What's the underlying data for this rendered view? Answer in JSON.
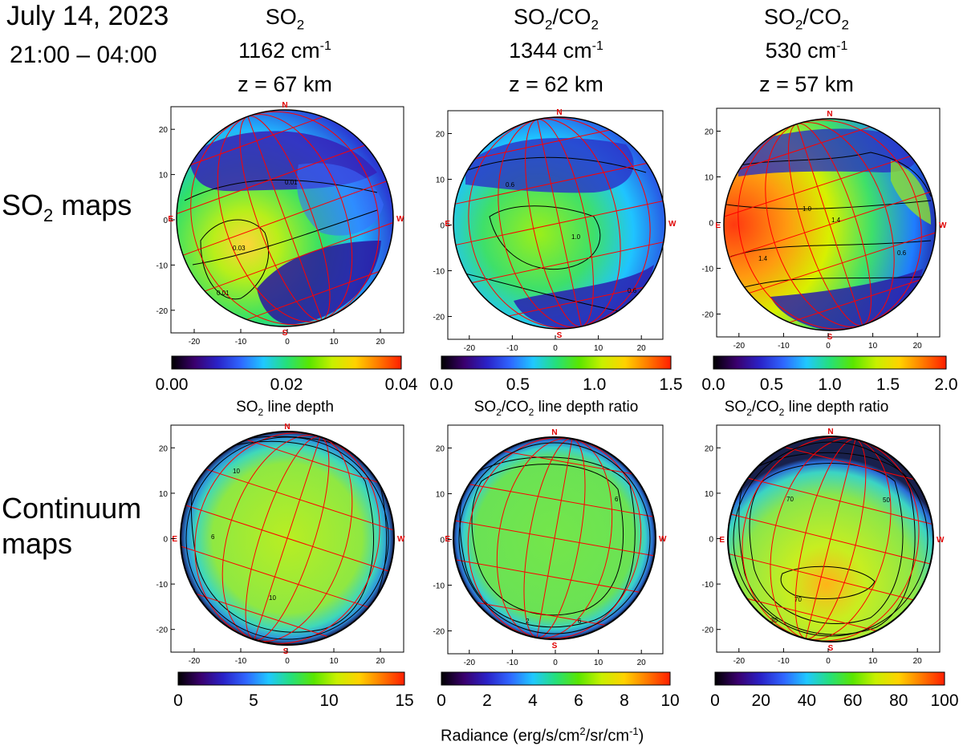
{
  "header": {
    "date": "July 14, 2023",
    "time_range": "21:00 – 04:00"
  },
  "row_labels": {
    "so2_maps": {
      "main": "SO",
      "sub": "2",
      "tail": " maps"
    },
    "continuum_line1": "Continuum",
    "continuum_line2": "maps"
  },
  "columns": [
    {
      "species": {
        "a": "SO",
        "a_sub": "2",
        "b": "",
        "b_sub": ""
      },
      "wavenumber": {
        "num": "1162 cm",
        "sup": "-1"
      },
      "altitude": "z = 67 km",
      "row1_label": {
        "a": "SO",
        "a_sub": "2",
        "b": "",
        "b_sub": "",
        "tail": " line depth"
      }
    },
    {
      "species": {
        "a": "SO",
        "a_sub": "2",
        "b": "/CO",
        "b_sub": "2"
      },
      "wavenumber": {
        "num": "1344 cm",
        "sup": "-1"
      },
      "altitude": "z = 62 km",
      "row1_label": {
        "a": "SO",
        "a_sub": "2",
        "b": "/CO",
        "b_sub": "2",
        "tail": " line depth ratio"
      }
    },
    {
      "species": {
        "a": "SO",
        "a_sub": "2",
        "b": "/CO",
        "b_sub": "2"
      },
      "wavenumber": {
        "num": "530 cm",
        "sup": "-1"
      },
      "altitude": "z = 57 km",
      "row1_label": {
        "a": "SO",
        "a_sub": "2",
        "b": "/CO",
        "b_sub": "2",
        "tail": " line depth ratio"
      }
    }
  ],
  "footer": {
    "radiance_label": {
      "p1": "Radiance (erg/s/cm",
      "s1": "2",
      "p2": "/sr/cm",
      "s2": "-1",
      "p3": ")"
    }
  },
  "colors": {
    "limb_line": "#000000",
    "grid": "#ff0000",
    "colormap": [
      "#000000",
      "#3a006e",
      "#2a22c8",
      "#2f66ff",
      "#1fc8ff",
      "#25e07a",
      "#5ae600",
      "#c8f000",
      "#ffd200",
      "#ff7a00",
      "#ff1e00"
    ]
  },
  "chart_data": [
    {
      "type": "heatmap",
      "title": "SO2 1162 cm-1, z = 67 km",
      "row": "SO2 maps",
      "axis_ticks": [
        "-20",
        "-10",
        "0",
        "10",
        "20"
      ],
      "xlim": [
        -25,
        25
      ],
      "ylim": [
        -25,
        25
      ],
      "compass": {
        "north": "N",
        "south": "S",
        "east": "E",
        "west": "W"
      },
      "contour_labels": [
        "0.01",
        "0.03",
        "0.01"
      ],
      "colorbar": {
        "range": [
          0.0,
          0.04
        ],
        "ticks": [
          "0.00",
          "0.02",
          "0.04"
        ]
      }
    },
    {
      "type": "heatmap",
      "title": "SO2/CO2 1344 cm-1, z = 62 km",
      "row": "SO2 maps",
      "axis_ticks": [
        "-20",
        "-10",
        "0",
        "10",
        "20"
      ],
      "xlim": [
        -25,
        25
      ],
      "ylim": [
        -25,
        25
      ],
      "compass": {
        "north": "N",
        "south": "S",
        "east": "E",
        "west": "W"
      },
      "contour_labels": [
        "0.6",
        "1.0",
        "0.6"
      ],
      "colorbar": {
        "range": [
          0.0,
          1.5
        ],
        "ticks": [
          "0.0",
          "0.5",
          "1.0",
          "1.5"
        ]
      }
    },
    {
      "type": "heatmap",
      "title": "SO2/CO2 530 cm-1, z = 57 km",
      "row": "SO2 maps",
      "axis_ticks": [
        "-20",
        "-10",
        "0",
        "10",
        "20"
      ],
      "xlim": [
        -25,
        25
      ],
      "ylim": [
        -25,
        25
      ],
      "compass": {
        "north": "N",
        "south": "S",
        "east": "E",
        "west": "W"
      },
      "contour_labels": [
        "1.4",
        "1.0",
        "1.4",
        "0.6"
      ],
      "colorbar": {
        "range": [
          0.0,
          2.0
        ],
        "ticks": [
          "0.0",
          "0.5",
          "1.0",
          "1.5",
          "2.0"
        ]
      }
    },
    {
      "type": "heatmap",
      "title": "Continuum 1162 cm-1",
      "row": "Continuum maps",
      "axis_ticks": [
        "-20",
        "-10",
        "0",
        "10",
        "20"
      ],
      "xlim": [
        -25,
        25
      ],
      "ylim": [
        -25,
        25
      ],
      "compass": {
        "north": "N",
        "south": "S",
        "east": "E",
        "west": "W"
      },
      "contour_labels": [
        "10",
        "6",
        "10"
      ],
      "colorbar": {
        "range": [
          0,
          15
        ],
        "ticks": [
          "0",
          "5",
          "10",
          "15"
        ],
        "units": "erg/s/cm2/sr/cm-1"
      }
    },
    {
      "type": "heatmap",
      "title": "Continuum 1344 cm-1",
      "row": "Continuum maps",
      "axis_ticks": [
        "-20",
        "-10",
        "0",
        "10",
        "20"
      ],
      "xlim": [
        -25,
        25
      ],
      "ylim": [
        -25,
        25
      ],
      "compass": {
        "north": "N",
        "south": "S",
        "east": "E",
        "west": "W"
      },
      "contour_labels": [
        "6",
        "6",
        "2"
      ],
      "colorbar": {
        "range": [
          0,
          10
        ],
        "ticks": [
          "0",
          "2",
          "4",
          "6",
          "8",
          "10"
        ],
        "units": "erg/s/cm2/sr/cm-1"
      }
    },
    {
      "type": "heatmap",
      "title": "Continuum 530 cm-1",
      "row": "Continuum maps",
      "axis_ticks": [
        "-20",
        "-10",
        "0",
        "10",
        "20"
      ],
      "xlim": [
        -25,
        25
      ],
      "ylim": [
        -25,
        25
      ],
      "compass": {
        "north": "N",
        "south": "S",
        "east": "E",
        "west": "W"
      },
      "contour_labels": [
        "70",
        "50",
        "70",
        "30"
      ],
      "colorbar": {
        "range": [
          0,
          100
        ],
        "ticks": [
          "0",
          "20",
          "40",
          "60",
          "80",
          "100"
        ],
        "units": "erg/s/cm2/sr/cm-1"
      }
    }
  ]
}
